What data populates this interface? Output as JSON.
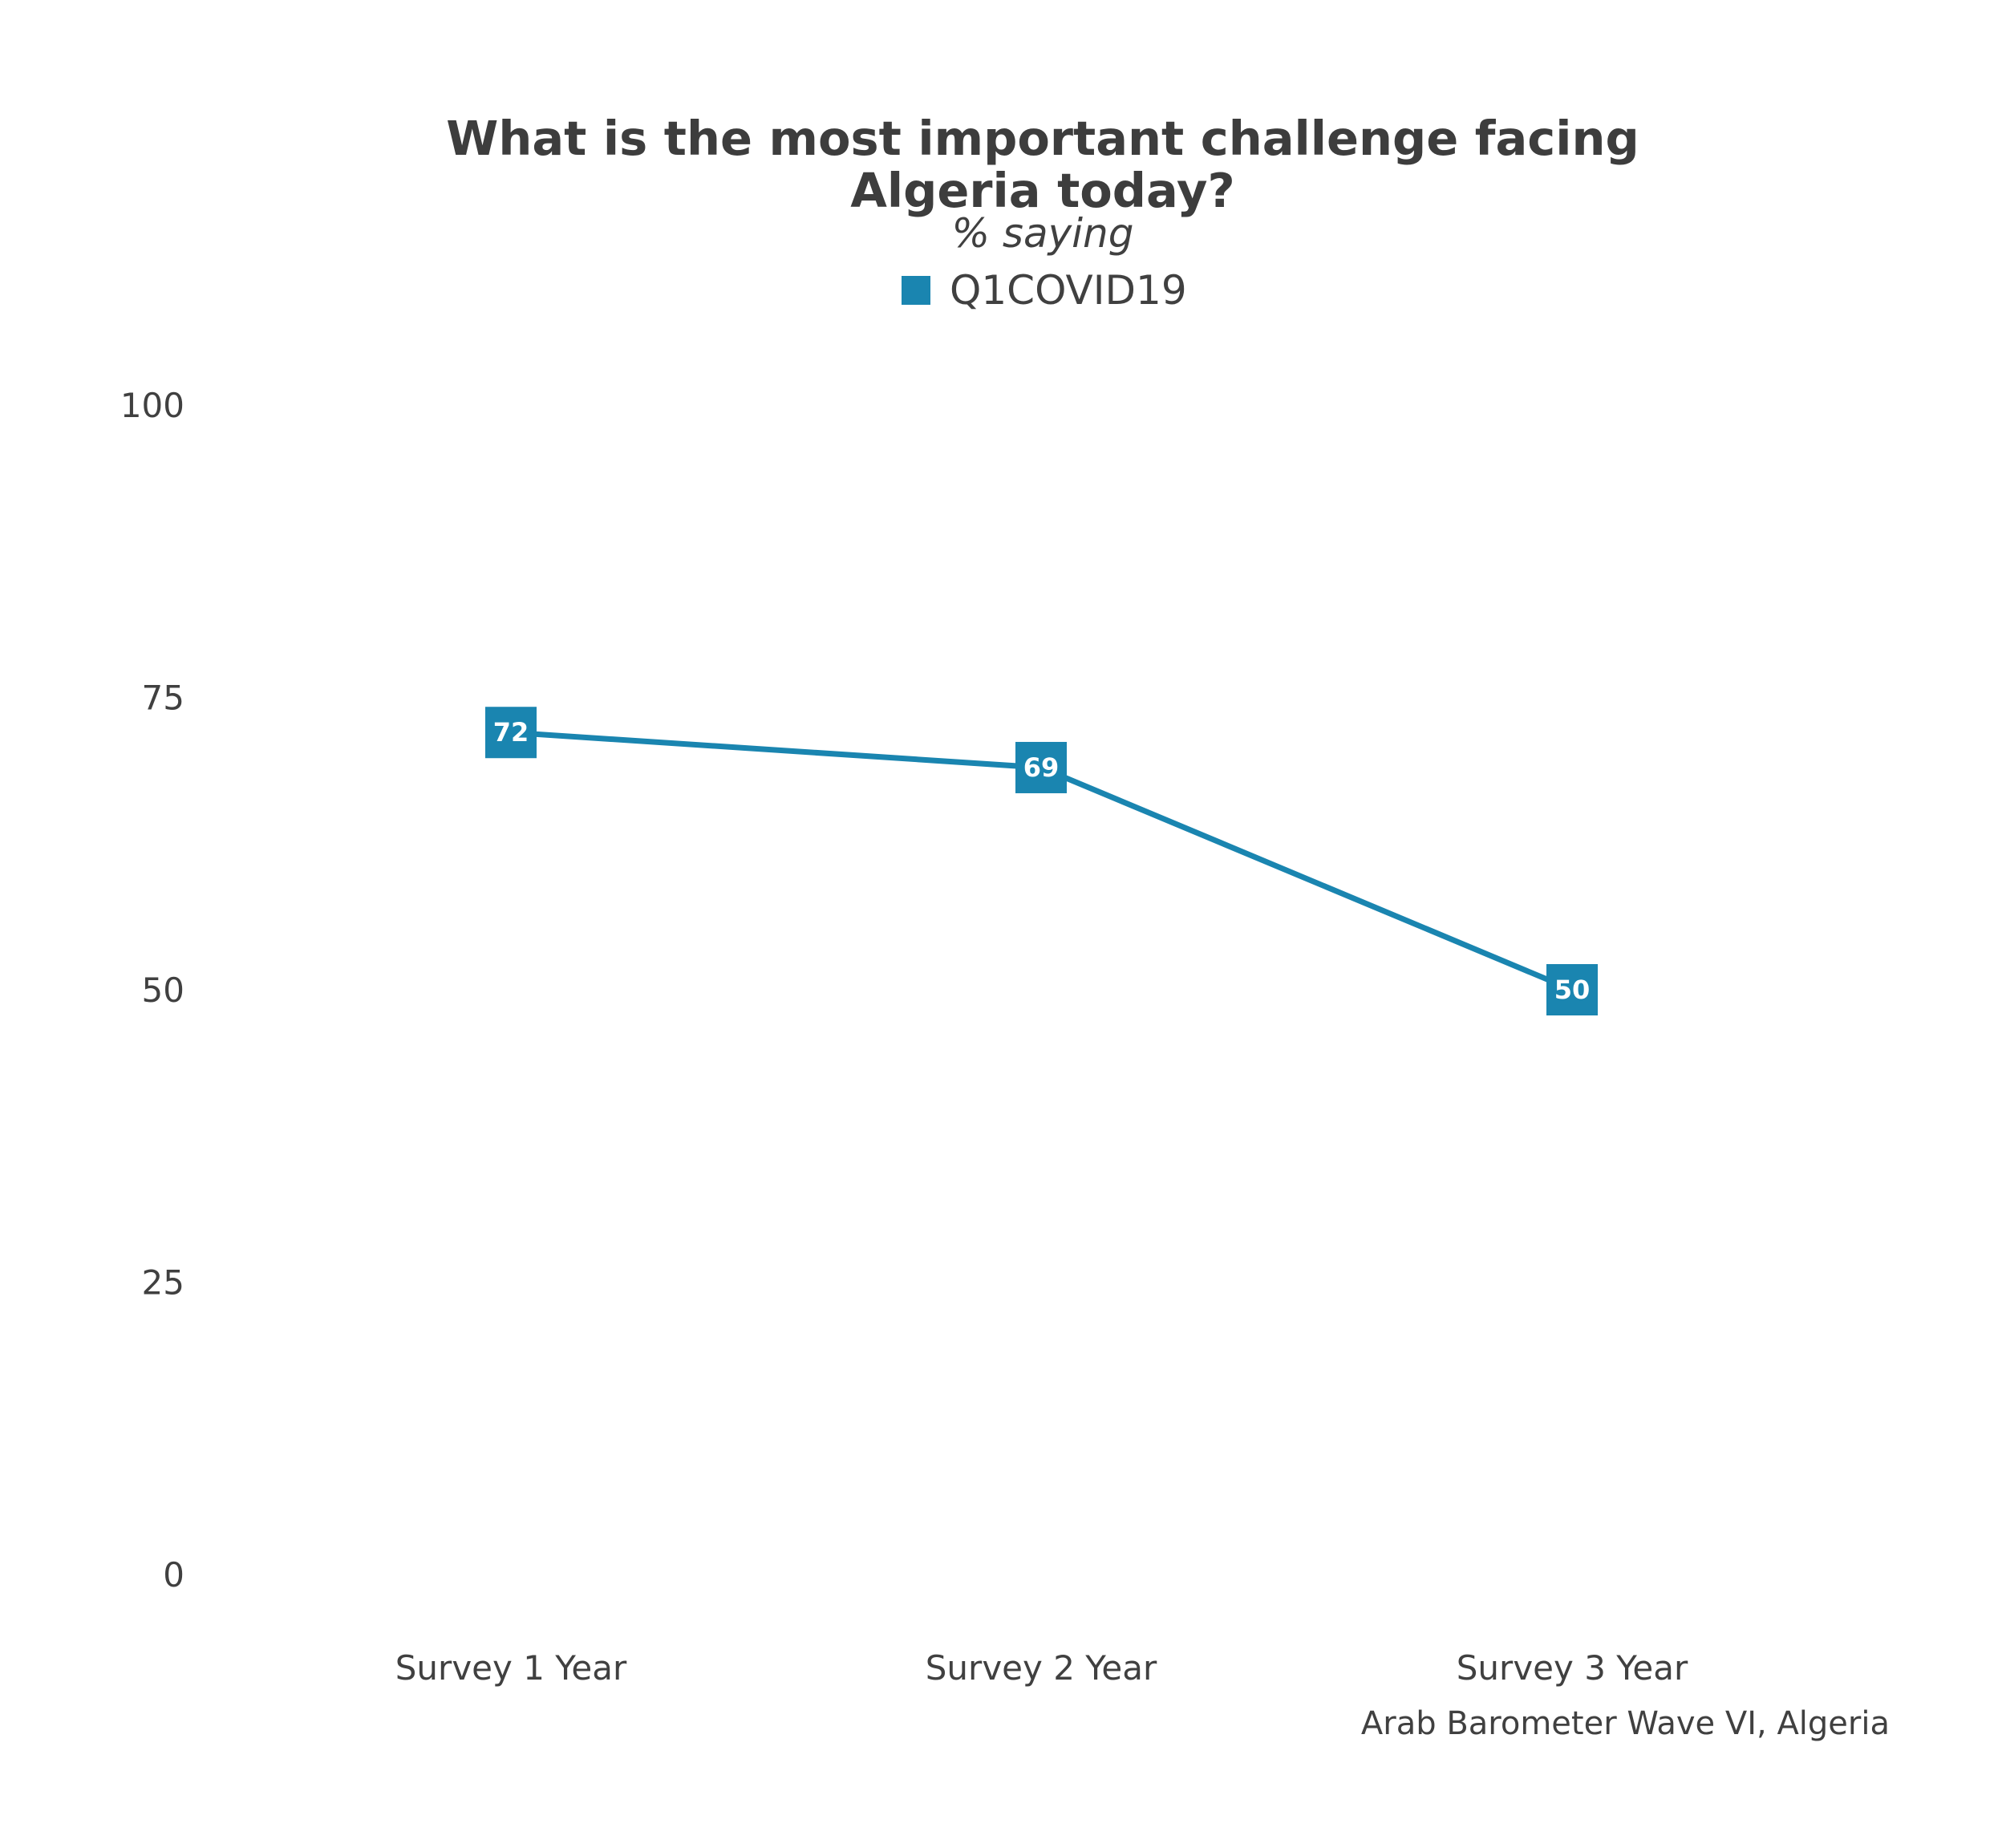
{
  "chart_data": {
    "type": "line",
    "title_lines": [
      "What is the most important challenge facing",
      "Algeria today?"
    ],
    "subtitle": "% saying",
    "caption": "Arab Barometer Wave VI, Algeria",
    "xlabel": "",
    "ylabel": "",
    "categories": [
      "Survey 1 Year",
      "Survey 2 Year",
      "Survey 3 Year"
    ],
    "series": [
      {
        "name": "Q1COVID19",
        "values": [
          72,
          69,
          50
        ],
        "color": "#1a85b0"
      }
    ],
    "ylim": [
      0,
      100
    ],
    "yticks": [
      0,
      25,
      50,
      75,
      100
    ],
    "grid": false,
    "legend_position": "top"
  }
}
